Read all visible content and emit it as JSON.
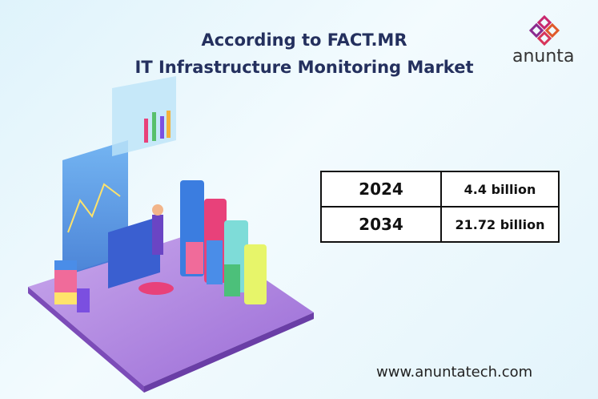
{
  "header": {
    "title_line1": "According to FACT.MR",
    "title_line2": "IT Infrastructure Monitoring Market",
    "logo": "anunta"
  },
  "table": {
    "rows": [
      [
        "2024",
        "4.4 billion"
      ],
      [
        "2034",
        "21.72 billion"
      ]
    ]
  },
  "footer": {
    "website": "www.anuntatech.com"
  }
}
